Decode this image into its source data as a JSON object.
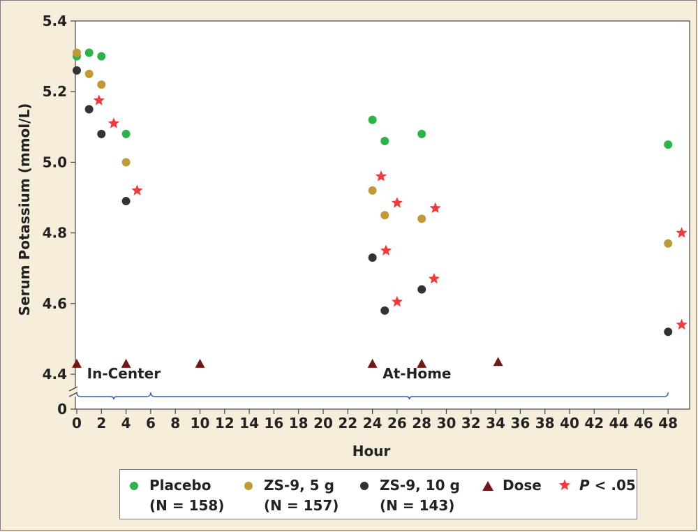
{
  "chart_data": {
    "type": "scatter",
    "title": "",
    "xlabel": "Hour",
    "ylabel": "Serum Potassium (mmol/L)",
    "xlim": [
      0,
      49.5
    ],
    "ylim": [
      4.4,
      5.4
    ],
    "y_axis_break": true,
    "x_ticks": [
      0,
      2,
      4,
      6,
      8,
      10,
      12,
      14,
      16,
      18,
      20,
      22,
      24,
      26,
      28,
      30,
      32,
      34,
      36,
      38,
      40,
      42,
      44,
      46,
      48
    ],
    "y_ticks": [
      "4.4",
      "4.6",
      "4.8",
      "5.0",
      "5.2",
      "5.4"
    ],
    "y_zero_label": "0",
    "grid": false,
    "legend_position": "bottom",
    "regions": [
      {
        "label": "In-Center",
        "x": 1
      },
      {
        "label": "At-Home",
        "x": 25
      }
    ],
    "series": [
      {
        "name": "Placebo",
        "n_label": "(N = 158)",
        "color": "#2eb34a",
        "marker": "circle",
        "points": [
          [
            0,
            5.3
          ],
          [
            1,
            5.31
          ],
          [
            2,
            5.3
          ],
          [
            4,
            5.08
          ],
          [
            24,
            5.12
          ],
          [
            25,
            5.06
          ],
          [
            28,
            5.08
          ],
          [
            48,
            5.05
          ]
        ]
      },
      {
        "name": "ZS-9, 5 g",
        "n_label": "(N = 157)",
        "color": "#c09a3a",
        "marker": "circle",
        "points": [
          [
            0,
            5.31
          ],
          [
            1,
            5.25
          ],
          [
            2,
            5.22
          ],
          [
            4,
            5.0
          ],
          [
            24,
            4.92
          ],
          [
            25,
            4.85
          ],
          [
            28,
            4.84
          ],
          [
            48,
            4.77
          ]
        ]
      },
      {
        "name": "ZS-9, 10 g",
        "n_label": "(N = 143)",
        "color": "#333333",
        "marker": "circle",
        "points": [
          [
            0,
            5.26
          ],
          [
            1,
            5.15
          ],
          [
            2,
            5.08
          ],
          [
            4,
            4.89
          ],
          [
            24,
            4.73
          ],
          [
            25,
            4.58
          ],
          [
            28,
            4.64
          ],
          [
            48,
            4.52
          ]
        ]
      },
      {
        "name": "Dose",
        "n_label": "",
        "color": "#6e1a1a",
        "marker": "triangle",
        "points": [
          [
            0,
            4.43
          ],
          [
            4,
            4.43
          ],
          [
            10,
            4.43
          ],
          [
            24,
            4.43
          ],
          [
            28,
            4.43
          ],
          [
            34.2,
            4.435
          ]
        ]
      },
      {
        "name": "P < .05",
        "n_label": "",
        "color": "#ee3b3b",
        "marker": "star",
        "points": [
          [
            1.8,
            5.175
          ],
          [
            3,
            5.11
          ],
          [
            4.9,
            4.92
          ],
          [
            24.7,
            4.96
          ],
          [
            26,
            4.885
          ],
          [
            29.1,
            4.87
          ],
          [
            25.1,
            4.75
          ],
          [
            29,
            4.67
          ],
          [
            26,
            4.605
          ],
          [
            49.1,
            4.8
          ],
          [
            49.1,
            4.54
          ]
        ]
      }
    ]
  },
  "legend": {
    "placebo": {
      "name": "Placebo",
      "n": "(N = 158)"
    },
    "zs9_5g": {
      "name": "ZS-9, 5 g",
      "n": "(N = 157)"
    },
    "zs9_10g": {
      "name": "ZS-9, 10 g",
      "n": "(N = 143)"
    },
    "dose": {
      "name": "Dose"
    },
    "pvalue": {
      "name_italic": "P",
      "name_rest": " < .05"
    }
  }
}
